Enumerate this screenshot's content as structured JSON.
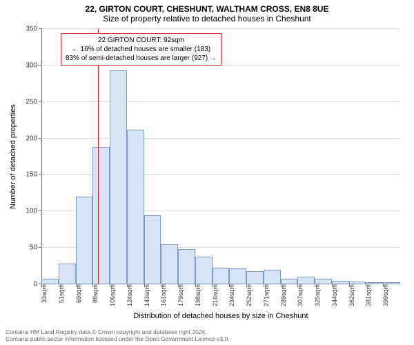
{
  "header": {
    "line1": "22, GIRTON COURT, CHESHUNT, WALTHAM CROSS, EN8 8UE",
    "line2": "Size of property relative to detached houses in Cheshunt"
  },
  "annotation": {
    "line1": "22 GIRTON COURT: 92sqm",
    "line2": "← 16% of detached houses are smaller (183)",
    "line3": "83% of semi-detached houses are larger (927) →",
    "box_border_color": "#c33",
    "box_bg_color": "#ffffff",
    "fontsize": 10
  },
  "chart": {
    "type": "histogram",
    "ylabel": "Number of detached properties",
    "xlabel": "Distribution of detached houses by size in Cheshunt",
    "label_fontsize": 11,
    "ylim": [
      0,
      350
    ],
    "ytick_step": 50,
    "yticks": [
      0,
      50,
      100,
      150,
      200,
      250,
      300,
      350
    ],
    "xticks": [
      "33sqm",
      "51sqm",
      "69sqm",
      "88sqm",
      "106sqm",
      "124sqm",
      "143sqm",
      "161sqm",
      "179sqm",
      "198sqm",
      "216sqm",
      "234sqm",
      "252sqm",
      "271sqm",
      "289sqm",
      "307sqm",
      "325sqm",
      "344sqm",
      "362sqm",
      "381sqm",
      "399sqm"
    ],
    "bars": [
      8,
      28,
      120,
      188,
      293,
      212,
      95,
      55,
      48,
      38,
      23,
      22,
      18,
      20,
      8,
      10,
      8,
      5,
      4,
      3,
      3
    ],
    "bar_fill_color": "#d6e3f5",
    "bar_border_color": "#7a99c7",
    "grid_color": "#d9d9d9",
    "axis_color": "#666666",
    "background_color": "#ffffff",
    "marker_value_index": 3.3,
    "marker_color": "#d62020",
    "tick_fontsize": 10
  },
  "footer": {
    "line1": "Contains HM Land Registry data © Crown copyright and database right 2024.",
    "line2": "Contains public sector information licensed under the Open Government Licence v3.0."
  }
}
